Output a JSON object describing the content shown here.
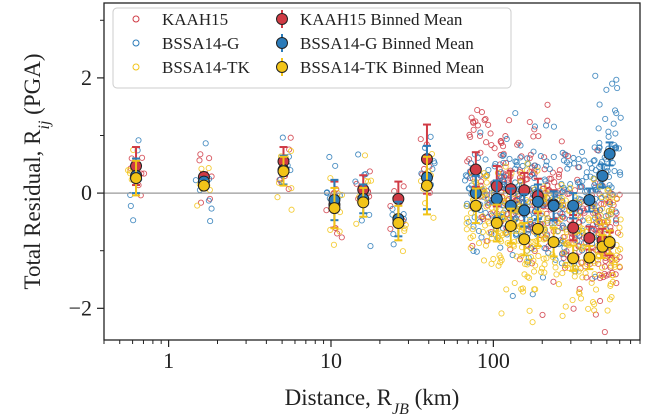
{
  "chart_data": {
    "type": "scatter",
    "title": "",
    "xlabel": "Distance, R",
    "xlabel_sub": "JB",
    "xlabel_unit": " (km)",
    "ylabel": "Total Residual, R",
    "ylabel_sub": "ij",
    "ylabel_unit": " (PGA)",
    "xscale": "log",
    "xlim": [
      0.4,
      800
    ],
    "ylim": [
      -2.55,
      3.3
    ],
    "xticks": [
      {
        "v": 1,
        "label": "1"
      },
      {
        "v": 10,
        "label": "10"
      },
      {
        "v": 100,
        "label": "100"
      }
    ],
    "yticks": [
      {
        "v": -2,
        "label": "−2"
      },
      {
        "v": 0,
        "label": "0"
      },
      {
        "v": 2,
        "label": "2"
      }
    ],
    "zero_line": true,
    "legend_position": "top-left",
    "colors": {
      "KAAH15": "#d03b45",
      "BSSA14-G": "#2b7bb9",
      "BSSA14-TK": "#f2c418"
    },
    "series": [
      {
        "name": "KAAH15",
        "color": "#d03b45",
        "x": [
          0.63,
          1.65,
          5.1,
          10.5,
          15.8,
          26,
          39,
          78,
          105,
          128,
          155,
          188,
          235,
          310,
          390,
          470,
          520
        ],
        "y": [
          0.47,
          0.28,
          0.55,
          -0.2,
          0.06,
          -0.1,
          0.59,
          0.41,
          0.12,
          0.07,
          0.05,
          -0.05,
          -0.2,
          -0.6,
          -0.78,
          -0.82,
          -0.88
        ],
        "err": [
          0.33,
          0.08,
          0.25,
          0.4,
          0.25,
          0.3,
          0.6,
          0.3,
          0.35,
          0.32,
          0.3,
          0.3,
          0.25,
          0.22,
          0.2,
          0.2,
          0.2
        ]
      },
      {
        "name": "BSSA14-G",
        "color": "#2b7bb9",
        "x": [
          0.63,
          1.65,
          5.1,
          10.5,
          15.8,
          26,
          39,
          78,
          105,
          128,
          155,
          188,
          235,
          310,
          390,
          470,
          520
        ],
        "y": [
          0.3,
          0.2,
          0.4,
          -0.12,
          -0.1,
          -0.45,
          0.27,
          0.0,
          -0.1,
          -0.22,
          -0.3,
          -0.15,
          -0.22,
          -0.22,
          -0.12,
          0.3,
          0.68
        ],
        "err": [
          0.3,
          0.08,
          0.25,
          0.35,
          0.25,
          0.3,
          0.55,
          0.3,
          0.32,
          0.3,
          0.28,
          0.3,
          0.25,
          0.22,
          0.2,
          0.2,
          0.2
        ]
      },
      {
        "name": "BSSA14-TK",
        "color": "#f2c418",
        "x": [
          0.63,
          1.65,
          5.1,
          10.5,
          15.8,
          26,
          39,
          78,
          105,
          128,
          155,
          188,
          235,
          310,
          390,
          470,
          520
        ],
        "y": [
          0.26,
          0.13,
          0.38,
          -0.26,
          -0.16,
          -0.52,
          0.13,
          -0.22,
          -0.52,
          -0.57,
          -0.8,
          -0.62,
          -0.85,
          -1.13,
          -1.12,
          -0.93,
          -0.85
        ],
        "err": [
          0.3,
          0.08,
          0.25,
          0.35,
          0.25,
          0.3,
          0.5,
          0.3,
          0.32,
          0.3,
          0.28,
          0.3,
          0.25,
          0.22,
          0.2,
          0.2,
          0.2
        ]
      }
    ],
    "legend": [
      {
        "label": "KAAH15",
        "kind": "open",
        "color": "#d03b45"
      },
      {
        "label": "BSSA14-G",
        "kind": "open",
        "color": "#2b7bb9"
      },
      {
        "label": "BSSA14-TK",
        "kind": "open",
        "color": "#f2c418"
      },
      {
        "label": "KAAH15 Binned Mean",
        "kind": "mean",
        "color": "#d03b45"
      },
      {
        "label": "BSSA14-G Binned Mean",
        "kind": "mean",
        "color": "#2b7bb9"
      },
      {
        "label": "BSSA14-TK Binned Mean",
        "kind": "mean",
        "color": "#f2c418"
      }
    ]
  }
}
